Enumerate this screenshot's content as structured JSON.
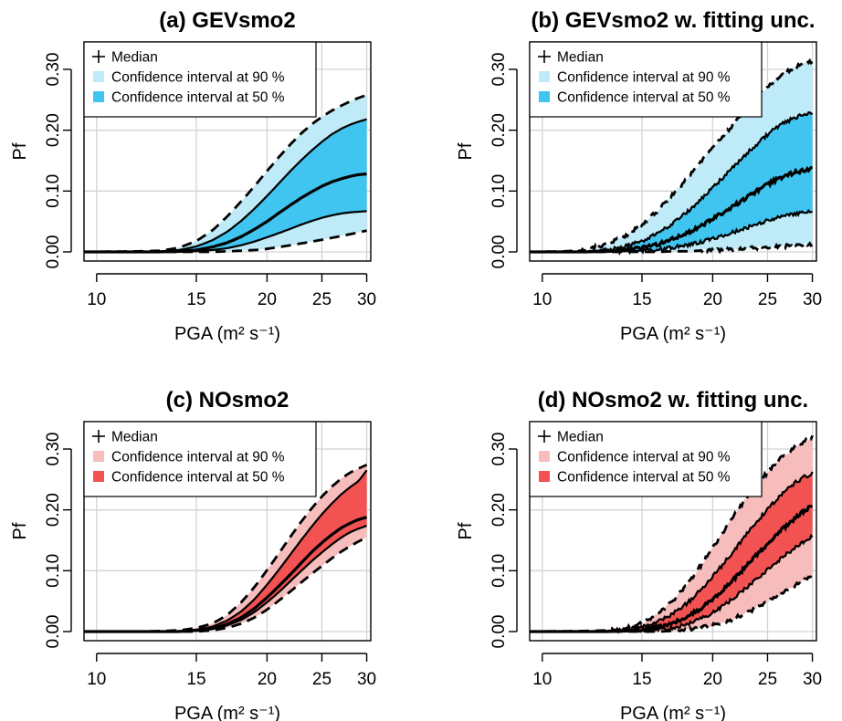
{
  "chart_data": [
    {
      "id": "a",
      "type": "area",
      "title": "(a) GEVsmo2",
      "xlabel": "PGA (m² s⁻¹)",
      "ylabel": "Pf",
      "x_scale": "log",
      "xlim": [
        9.5,
        30.5
      ],
      "ylim": [
        -0.015,
        0.345
      ],
      "x_ticks": [
        10,
        15,
        20,
        25,
        30
      ],
      "y_ticks": [
        0.0,
        0.1,
        0.2,
        0.3
      ],
      "y_tick_labels": [
        "0.00",
        "0.10",
        "0.20",
        "0.30"
      ],
      "grid": true,
      "fitting_uncertainty": false,
      "palette": {
        "ci90": "#bfeaf7",
        "ci50": "#3fc5f0"
      },
      "legend": {
        "position": "top-left",
        "entries": [
          "Median",
          "Confidence interval at 90 %",
          "Confidence interval at 50 %"
        ]
      },
      "x": [
        9.5,
        12,
        13,
        14,
        15,
        16,
        17,
        18,
        19,
        20,
        21,
        22,
        23,
        24,
        25,
        26,
        27,
        28,
        29,
        30
      ],
      "series": [
        {
          "key": "upper90",
          "values": [
            0,
            0.001,
            0.002,
            0.007,
            0.018,
            0.035,
            0.058,
            0.083,
            0.108,
            0.133,
            0.156,
            0.177,
            0.195,
            0.21,
            0.222,
            0.232,
            0.24,
            0.247,
            0.253,
            0.258
          ]
        },
        {
          "key": "upper50",
          "values": [
            0,
            0,
            0.001,
            0.003,
            0.009,
            0.019,
            0.033,
            0.051,
            0.071,
            0.092,
            0.113,
            0.133,
            0.151,
            0.167,
            0.181,
            0.193,
            0.202,
            0.209,
            0.214,
            0.218
          ]
        },
        {
          "key": "median",
          "values": [
            0,
            0,
            0,
            0.001,
            0.003,
            0.008,
            0.015,
            0.025,
            0.037,
            0.05,
            0.064,
            0.077,
            0.089,
            0.099,
            0.108,
            0.115,
            0.12,
            0.124,
            0.127,
            0.128
          ]
        },
        {
          "key": "lower50",
          "values": [
            0,
            0,
            0,
            0,
            0.001,
            0.003,
            0.006,
            0.011,
            0.017,
            0.024,
            0.031,
            0.038,
            0.045,
            0.051,
            0.056,
            0.06,
            0.063,
            0.065,
            0.066,
            0.067
          ]
        },
        {
          "key": "lower90",
          "values": [
            0,
            0,
            0,
            0,
            0,
            0,
            0.001,
            0.002,
            0.003,
            0.005,
            0.008,
            0.011,
            0.014,
            0.017,
            0.02,
            0.023,
            0.026,
            0.029,
            0.032,
            0.035
          ]
        }
      ]
    },
    {
      "id": "b",
      "type": "area",
      "title": "(b) GEVsmo2 w. fitting unc.",
      "xlabel": "PGA (m² s⁻¹)",
      "ylabel": "Pf",
      "x_scale": "log",
      "xlim": [
        9.5,
        30.5
      ],
      "ylim": [
        -0.015,
        0.345
      ],
      "x_ticks": [
        10,
        15,
        20,
        25,
        30
      ],
      "y_ticks": [
        0.0,
        0.1,
        0.2,
        0.3
      ],
      "y_tick_labels": [
        "0.00",
        "0.10",
        "0.20",
        "0.30"
      ],
      "grid": true,
      "fitting_uncertainty": true,
      "palette": {
        "ci90": "#bfeaf7",
        "ci50": "#3fc5f0"
      },
      "legend": {
        "position": "top-left",
        "entries": [
          "Median",
          "Confidence interval at 90 %",
          "Confidence interval at 50 %"
        ]
      },
      "x": [
        9.5,
        11,
        12,
        13,
        14,
        15,
        16,
        17,
        18,
        19,
        20,
        21,
        22,
        23,
        24,
        25,
        26,
        27,
        28,
        29,
        30
      ],
      "series": [
        {
          "key": "upper90",
          "values": [
            0,
            0.001,
            0.004,
            0.012,
            0.026,
            0.045,
            0.068,
            0.094,
            0.12,
            0.146,
            0.17,
            0.193,
            0.215,
            0.236,
            0.255,
            0.272,
            0.285,
            0.296,
            0.304,
            0.31,
            0.314
          ]
        },
        {
          "key": "upper50",
          "values": [
            0,
            0,
            0.001,
            0.003,
            0.009,
            0.018,
            0.031,
            0.047,
            0.065,
            0.085,
            0.105,
            0.125,
            0.144,
            0.162,
            0.178,
            0.193,
            0.205,
            0.214,
            0.221,
            0.226,
            0.228
          ]
        },
        {
          "key": "median",
          "values": [
            0,
            0,
            0,
            0.001,
            0.003,
            0.007,
            0.013,
            0.021,
            0.031,
            0.042,
            0.054,
            0.066,
            0.078,
            0.09,
            0.101,
            0.111,
            0.119,
            0.126,
            0.131,
            0.134,
            0.136
          ]
        },
        {
          "key": "lower50",
          "values": [
            0,
            0,
            0,
            0,
            0.001,
            0.002,
            0.004,
            0.007,
            0.011,
            0.016,
            0.022,
            0.028,
            0.034,
            0.04,
            0.046,
            0.051,
            0.056,
            0.06,
            0.063,
            0.065,
            0.066
          ]
        },
        {
          "key": "lower90",
          "values": [
            0,
            0,
            0,
            0,
            0,
            0,
            0,
            0.001,
            0.001,
            0.002,
            0.003,
            0.004,
            0.005,
            0.006,
            0.007,
            0.008,
            0.009,
            0.01,
            0.011,
            0.012,
            0.013
          ]
        }
      ]
    },
    {
      "id": "c",
      "type": "area",
      "title": "(c) NOsmo2",
      "xlabel": "PGA (m² s⁻¹)",
      "ylabel": "Pf",
      "x_scale": "log",
      "xlim": [
        9.5,
        30.5
      ],
      "ylim": [
        -0.015,
        0.345
      ],
      "x_ticks": [
        10,
        15,
        20,
        25,
        30
      ],
      "y_ticks": [
        0.0,
        0.1,
        0.2,
        0.3
      ],
      "y_tick_labels": [
        "0.00",
        "0.10",
        "0.20",
        "0.30"
      ],
      "grid": true,
      "fitting_uncertainty": false,
      "palette": {
        "ci90": "#f7bcbc",
        "ci50": "#f25252"
      },
      "legend": {
        "position": "top-left",
        "entries": [
          "Median",
          "Confidence interval at 90 %",
          "Confidence interval at 50 %"
        ]
      },
      "x": [
        9.5,
        12,
        13,
        14,
        15,
        16,
        17,
        18,
        19,
        20,
        21,
        22,
        23,
        24,
        25,
        26,
        27,
        28,
        29,
        30
      ],
      "series": [
        {
          "key": "upper90",
          "values": [
            0,
            0,
            0.001,
            0.002,
            0.006,
            0.013,
            0.027,
            0.048,
            0.073,
            0.101,
            0.129,
            0.156,
            0.181,
            0.203,
            0.222,
            0.238,
            0.251,
            0.261,
            0.268,
            0.274
          ]
        },
        {
          "key": "upper50",
          "values": [
            0,
            0,
            0,
            0.001,
            0.003,
            0.008,
            0.018,
            0.033,
            0.053,
            0.077,
            0.102,
            0.127,
            0.151,
            0.173,
            0.193,
            0.21,
            0.225,
            0.237,
            0.247,
            0.265
          ]
        },
        {
          "key": "median",
          "values": [
            0,
            0,
            0,
            0,
            0.002,
            0.005,
            0.012,
            0.023,
            0.038,
            0.056,
            0.075,
            0.094,
            0.113,
            0.131,
            0.146,
            0.159,
            0.17,
            0.178,
            0.184,
            0.188
          ]
        },
        {
          "key": "lower50",
          "values": [
            0,
            0,
            0,
            0,
            0.001,
            0.004,
            0.01,
            0.019,
            0.032,
            0.048,
            0.065,
            0.083,
            0.1,
            0.116,
            0.13,
            0.143,
            0.154,
            0.163,
            0.169,
            0.174
          ]
        },
        {
          "key": "lower90",
          "values": [
            0,
            0,
            0,
            0,
            0,
            0.002,
            0.006,
            0.013,
            0.023,
            0.036,
            0.051,
            0.066,
            0.081,
            0.095,
            0.108,
            0.12,
            0.131,
            0.14,
            0.148,
            0.155
          ]
        }
      ]
    },
    {
      "id": "d",
      "type": "area",
      "title": "(d) NOsmo2 w. fitting unc.",
      "xlabel": "PGA (m² s⁻¹)",
      "ylabel": "Pf",
      "x_scale": "log",
      "xlim": [
        9.5,
        30.5
      ],
      "ylim": [
        -0.015,
        0.345
      ],
      "x_ticks": [
        10,
        15,
        20,
        25,
        30
      ],
      "y_ticks": [
        0.0,
        0.1,
        0.2,
        0.3
      ],
      "y_tick_labels": [
        "0.00",
        "0.10",
        "0.20",
        "0.30"
      ],
      "grid": true,
      "fitting_uncertainty": true,
      "palette": {
        "ci90": "#f7bcbc",
        "ci50": "#f25252"
      },
      "legend": {
        "position": "top-left",
        "entries": [
          "Median",
          "Confidence interval at 90 %",
          "Confidence interval at 50 %"
        ]
      },
      "x": [
        9.5,
        12,
        13,
        14,
        15,
        16,
        17,
        18,
        19,
        20,
        21,
        22,
        23,
        24,
        25,
        26,
        27,
        28,
        29,
        30
      ],
      "series": [
        {
          "key": "upper90",
          "values": [
            0,
            0.001,
            0.002,
            0.006,
            0.014,
            0.029,
            0.05,
            0.077,
            0.107,
            0.138,
            0.168,
            0.196,
            0.221,
            0.243,
            0.262,
            0.279,
            0.293,
            0.304,
            0.313,
            0.32
          ]
        },
        {
          "key": "upper50",
          "values": [
            0,
            0,
            0.001,
            0.003,
            0.008,
            0.016,
            0.029,
            0.046,
            0.067,
            0.09,
            0.114,
            0.138,
            0.161,
            0.182,
            0.201,
            0.218,
            0.233,
            0.245,
            0.254,
            0.26
          ]
        },
        {
          "key": "median",
          "values": [
            0,
            0,
            0,
            0.001,
            0.003,
            0.007,
            0.014,
            0.024,
            0.037,
            0.053,
            0.071,
            0.09,
            0.109,
            0.127,
            0.144,
            0.16,
            0.174,
            0.187,
            0.198,
            0.207
          ]
        },
        {
          "key": "lower50",
          "values": [
            0,
            0,
            0,
            0,
            0.001,
            0.003,
            0.006,
            0.012,
            0.02,
            0.031,
            0.044,
            0.058,
            0.073,
            0.088,
            0.102,
            0.115,
            0.127,
            0.138,
            0.148,
            0.157
          ]
        },
        {
          "key": "lower90",
          "values": [
            0,
            0,
            0,
            0,
            0,
            0,
            0.001,
            0.003,
            0.006,
            0.01,
            0.016,
            0.023,
            0.031,
            0.04,
            0.049,
            0.058,
            0.067,
            0.076,
            0.084,
            0.092
          ]
        }
      ]
    }
  ]
}
